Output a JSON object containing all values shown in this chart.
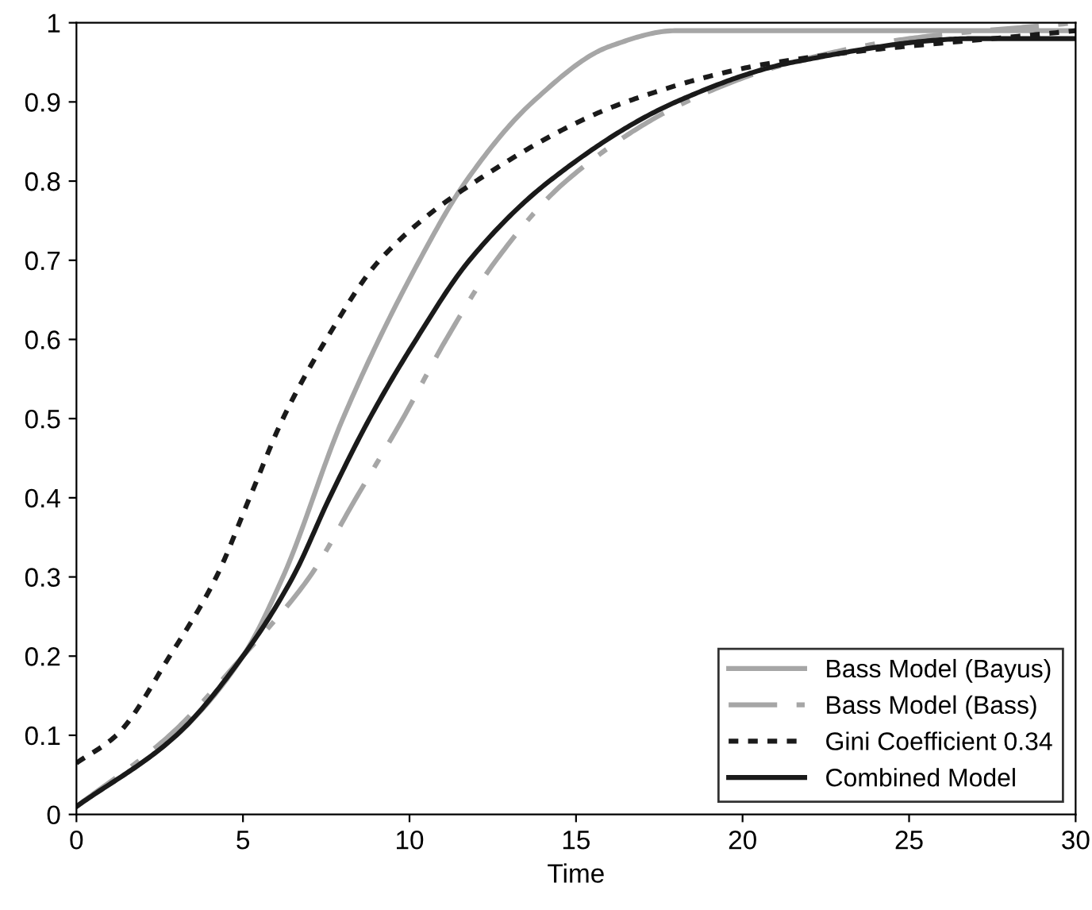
{
  "chart_data": {
    "type": "line",
    "xlabel": "Time",
    "xlim": [
      0,
      30
    ],
    "ylim": [
      0,
      1
    ],
    "xticks": [
      0,
      5,
      10,
      15,
      20,
      25,
      30
    ],
    "yticks": [
      0,
      0.1,
      0.2,
      0.3,
      0.4,
      0.5,
      0.6,
      0.7,
      0.8,
      0.9,
      1
    ],
    "grid": false,
    "legend": "bottom right",
    "marker": "none",
    "series": [
      {
        "name": "Bass Model (Bayus)",
        "color": "#a6a6a6",
        "line_style": "solid",
        "x": [
          0,
          3,
          5,
          6.2,
          8,
          10.3,
          11.7,
          13.7,
          16,
          18,
          30
        ],
        "values": [
          0.01,
          0.1,
          0.2,
          0.3,
          0.5,
          0.7,
          0.8,
          0.9,
          0.97,
          0.99,
          0.99
        ]
      },
      {
        "name": "Bass Model (Bass)",
        "color": "#a6a6a6",
        "line_style": "dashdot",
        "x": [
          0,
          2.8,
          5,
          7,
          8.4,
          9.8,
          11.1,
          12.6,
          14.7,
          18.3,
          21.5,
          25,
          30
        ],
        "values": [
          0.01,
          0.1,
          0.2,
          0.3,
          0.4,
          0.5,
          0.6,
          0.7,
          0.8,
          0.9,
          0.95,
          0.98,
          1.0
        ]
      },
      {
        "name": "Gini Coefficient 0.34",
        "color": "#1a1a1a",
        "line_style": "dotted",
        "x": [
          0,
          1.2,
          2.8,
          4.2,
          5.2,
          6.2,
          7.5,
          9.1,
          12,
          16.5,
          21,
          30
        ],
        "values": [
          0.065,
          0.1,
          0.2,
          0.3,
          0.4,
          0.5,
          0.6,
          0.7,
          0.8,
          0.9,
          0.95,
          0.99
        ]
      },
      {
        "name": "Combined Model",
        "color": "#1a1a1a",
        "line_style": "solid",
        "x": [
          0,
          3,
          5,
          6.5,
          7.6,
          8.8,
          10.2,
          11.8,
          14.2,
          18,
          21.5,
          27,
          30
        ],
        "values": [
          0.01,
          0.1,
          0.2,
          0.3,
          0.4,
          0.5,
          0.6,
          0.7,
          0.8,
          0.9,
          0.95,
          0.98,
          0.98
        ]
      }
    ]
  }
}
